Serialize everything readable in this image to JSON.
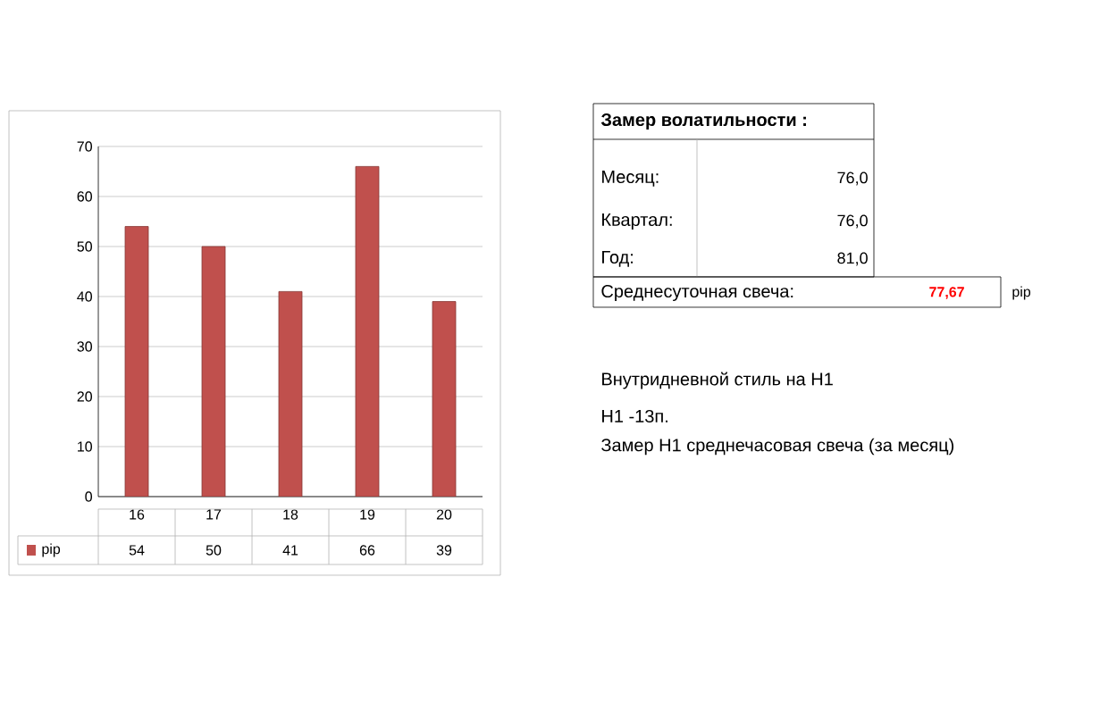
{
  "chart_data": [
    {
      "type": "bar",
      "categories": [
        "16",
        "17",
        "18",
        "19",
        "20"
      ],
      "series": [
        {
          "name": "pip",
          "color": "#c0504d",
          "values": [
            54,
            50,
            41,
            66,
            39
          ]
        }
      ],
      "ylim": [
        0,
        70
      ],
      "yticks": [
        0,
        10,
        20,
        30,
        40,
        50,
        60,
        70
      ],
      "grid": "y",
      "legend": "bottom",
      "data_labels": true
    },
    {
      "type": "other",
      "annotations": [
        "Замер  волатильности  :",
        "Месяц:",
        "76,0",
        "Квартал:",
        "76,0",
        "Год:",
        "81,0",
        "Среднесуточная свеча:",
        "77,67",
        "pip",
        "Внутридневной стиль на H1",
        "H1 -13п.",
        "Замер H1 среднечасовая свеча (за месяц)"
      ]
    }
  ]
}
